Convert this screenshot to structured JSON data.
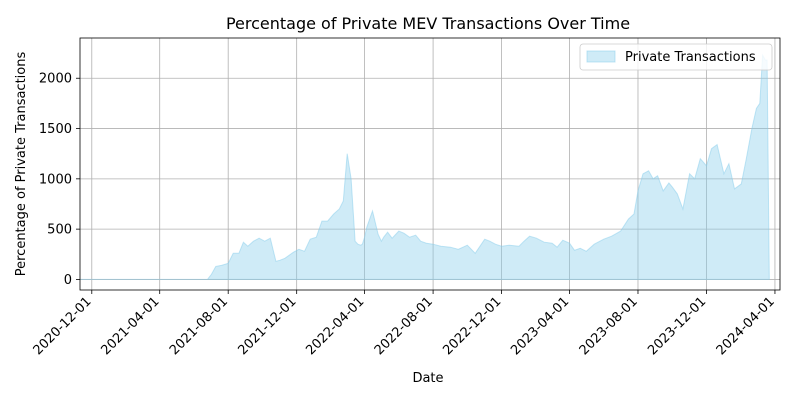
{
  "chart_data": {
    "type": "area",
    "title": "Percentage of Private MEV Transactions Over Time",
    "xlabel": "Date",
    "ylabel": "Percentage of Private Transactions",
    "xlim": [
      "2020-11-10",
      "2024-04-10"
    ],
    "ylim": [
      -105,
      2400
    ],
    "x_ticks": [
      "2020-12-01",
      "2021-04-01",
      "2021-08-01",
      "2021-12-01",
      "2022-04-01",
      "2022-08-01",
      "2022-12-01",
      "2023-04-01",
      "2023-08-01",
      "2023-12-01",
      "2024-04-01"
    ],
    "y_ticks": [
      0,
      500,
      1000,
      1500,
      2000
    ],
    "grid": true,
    "legend": {
      "position": "top-right"
    },
    "colors": {
      "fill": "#87ceeb",
      "edge": "#87ceeb",
      "grid": "#b0b0b0"
    },
    "series": [
      {
        "name": "Private Transactions",
        "x": [
          "2020-11-10",
          "2021-01-15",
          "2021-04-01",
          "2021-06-01",
          "2021-06-25",
          "2021-07-02",
          "2021-07-10",
          "2021-07-20",
          "2021-08-01",
          "2021-08-10",
          "2021-08-20",
          "2021-08-28",
          "2021-09-05",
          "2021-09-15",
          "2021-09-25",
          "2021-10-05",
          "2021-10-15",
          "2021-10-25",
          "2021-11-01",
          "2021-11-10",
          "2021-11-25",
          "2021-12-05",
          "2021-12-15",
          "2021-12-25",
          "2022-01-05",
          "2022-01-15",
          "2022-01-25",
          "2022-02-05",
          "2022-02-15",
          "2022-02-22",
          "2022-03-01",
          "2022-03-08",
          "2022-03-15",
          "2022-03-20",
          "2022-03-25",
          "2022-03-28",
          "2022-04-01",
          "2022-04-05",
          "2022-04-15",
          "2022-04-25",
          "2022-05-01",
          "2022-05-05",
          "2022-05-12",
          "2022-05-20",
          "2022-06-01",
          "2022-06-10",
          "2022-06-20",
          "2022-07-01",
          "2022-07-10",
          "2022-07-20",
          "2022-08-01",
          "2022-08-15",
          "2022-09-01",
          "2022-09-15",
          "2022-10-01",
          "2022-10-15",
          "2022-11-01",
          "2022-11-10",
          "2022-11-20",
          "2022-12-01",
          "2022-12-15",
          "2023-01-01",
          "2023-01-10",
          "2023-01-20",
          "2023-02-01",
          "2023-02-15",
          "2023-03-01",
          "2023-03-10",
          "2023-03-20",
          "2023-04-01",
          "2023-04-10",
          "2023-04-20",
          "2023-05-01",
          "2023-05-15",
          "2023-06-01",
          "2023-06-15",
          "2023-07-01",
          "2023-07-15",
          "2023-07-25",
          "2023-08-01",
          "2023-08-10",
          "2023-08-20",
          "2023-08-28",
          "2023-09-05",
          "2023-09-15",
          "2023-09-25",
          "2023-10-01",
          "2023-10-10",
          "2023-10-20",
          "2023-11-01",
          "2023-11-10",
          "2023-11-20",
          "2023-12-01",
          "2023-12-10",
          "2023-12-20",
          "2024-01-01",
          "2024-01-10",
          "2024-01-20",
          "2024-02-01",
          "2024-02-10",
          "2024-02-20",
          "2024-02-28",
          "2024-03-05",
          "2024-03-10",
          "2024-03-15",
          "2024-03-18",
          "2024-03-22"
        ],
        "values": [
          0,
          0,
          0,
          0,
          0,
          50,
          130,
          140,
          160,
          260,
          260,
          370,
          330,
          380,
          410,
          380,
          410,
          180,
          190,
          210,
          270,
          300,
          280,
          400,
          420,
          580,
          580,
          650,
          700,
          780,
          1250,
          1000,
          380,
          350,
          340,
          350,
          420,
          520,
          680,
          450,
          380,
          420,
          470,
          410,
          480,
          460,
          420,
          440,
          380,
          360,
          350,
          330,
          320,
          300,
          340,
          260,
          400,
          380,
          350,
          330,
          340,
          330,
          380,
          430,
          410,
          370,
          360,
          320,
          390,
          360,
          290,
          310,
          280,
          350,
          400,
          430,
          480,
          600,
          650,
          880,
          1050,
          1080,
          1000,
          1030,
          880,
          960,
          920,
          850,
          700,
          1050,
          1000,
          1200,
          1130,
          1300,
          1340,
          1050,
          1150,
          900,
          950,
          1200,
          1500,
          1700,
          1750,
          2230,
          2180,
          2180,
          0
        ]
      }
    ]
  }
}
